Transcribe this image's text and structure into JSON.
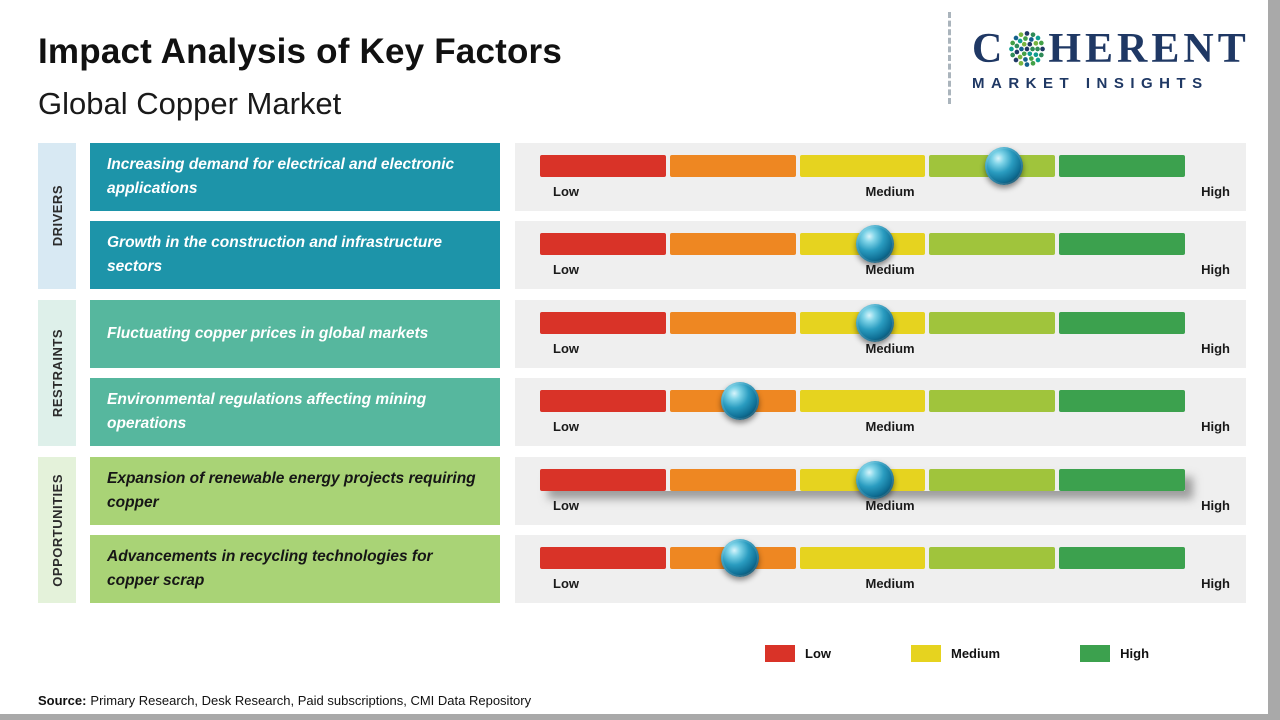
{
  "header": {
    "title": "Impact Analysis of Key Factors",
    "subtitle": "Global Copper Market"
  },
  "logo": {
    "part1": "C",
    "part2": "HERENT",
    "subtext": "MARKET INSIGHTS",
    "globe_icon": "dotted-globe-icon"
  },
  "groups": [
    {
      "label": "DRIVERS"
    },
    {
      "label": "RESTRAINTS"
    },
    {
      "label": "OPPORTUNITIES"
    }
  ],
  "rows": [
    {
      "group": "Drivers",
      "factor": "Increasing demand for electrical and electronic applications"
    },
    {
      "group": "Drivers",
      "factor": "Growth in the construction and infrastructure sectors"
    },
    {
      "group": "Restraints",
      "factor": "Fluctuating copper prices in global markets"
    },
    {
      "group": "Restraints",
      "factor": "Environmental regulations affecting mining operations"
    },
    {
      "group": "Opportunities",
      "factor": "Expansion of renewable energy projects requiring copper"
    },
    {
      "group": "Opportunities",
      "factor": "Advancements in recycling technologies for copper scrap"
    }
  ],
  "scale": {
    "low": "Low",
    "medium": "Medium",
    "high": "High"
  },
  "legend": [
    {
      "label": "Low",
      "color": "#d93328"
    },
    {
      "label": "Medium",
      "color": "#e6d31f"
    },
    {
      "label": "High",
      "color": "#3ca14e"
    }
  ],
  "source": {
    "prefix": "Source:",
    "text": "Primary Research, Desk Research, Paid subscriptions, CMI Data Repository"
  },
  "colors": {
    "segments": [
      "#d93328",
      "#ee8722",
      "#e6d31f",
      "#a0c43c",
      "#3ca14e"
    ],
    "driver_box": "#1d94a9",
    "restraint_box": "#56b79e",
    "opportunity_box": "#a9d376",
    "driver_tab": "#d8e9f3",
    "restraint_tab": "#def0ea",
    "opportunity_tab": "#e4f2da",
    "marker_sphere": "#0f6f95",
    "brand_navy": "#1f3864",
    "panel_gray": "#efefef",
    "globe_dots": [
      "#1f3864",
      "#2e8b57",
      "#0f9d8f",
      "#43a047",
      "#14608c",
      "#77b43f"
    ]
  },
  "chart_data": {
    "type": "bar",
    "title": "Impact Analysis of Key Factors",
    "subtitle": "Global Copper Market",
    "scale_labels": [
      "Low",
      "Medium",
      "High"
    ],
    "categories": [
      "Increasing demand for electrical and electronic applications",
      "Growth in the construction and infrastructure sectors",
      "Fluctuating copper prices in global markets",
      "Environmental regulations affecting mining operations",
      "Expansion of renewable energy projects requiring copper",
      "Advancements in recycling technologies for copper scrap"
    ],
    "groups": [
      "Drivers",
      "Drivers",
      "Restraints",
      "Restraints",
      "Opportunities",
      "Opportunities"
    ],
    "values_percent": [
      72,
      52,
      52,
      31,
      52,
      31
    ],
    "impact_levels": [
      "Medium-High",
      "Medium",
      "Medium",
      "Low-Medium",
      "Medium",
      "Low-Medium"
    ],
    "xlim": [
      0,
      100
    ],
    "legend": [
      "Low",
      "Medium",
      "High"
    ],
    "legend_position": "bottom-right",
    "grid": false
  }
}
